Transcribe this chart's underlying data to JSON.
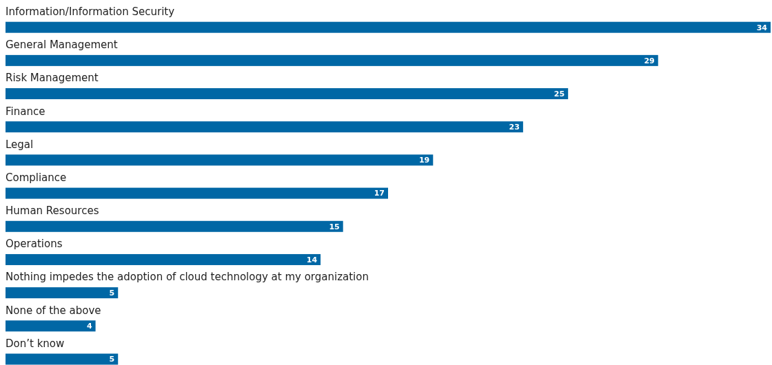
{
  "chart_data": {
    "type": "bar",
    "orientation": "horizontal",
    "categories": [
      "Information/Information Security",
      "General Management",
      "Risk Management",
      "Finance",
      "Legal",
      "Compliance",
      "Human Resources",
      "Operations",
      "Nothing impedes the adoption of cloud technology at my organization",
      "None of the above",
      "Don’t know"
    ],
    "values": [
      34,
      29,
      25,
      23,
      19,
      17,
      15,
      14,
      5,
      4,
      5
    ],
    "color": "#0067a5",
    "data_labels": true
  }
}
